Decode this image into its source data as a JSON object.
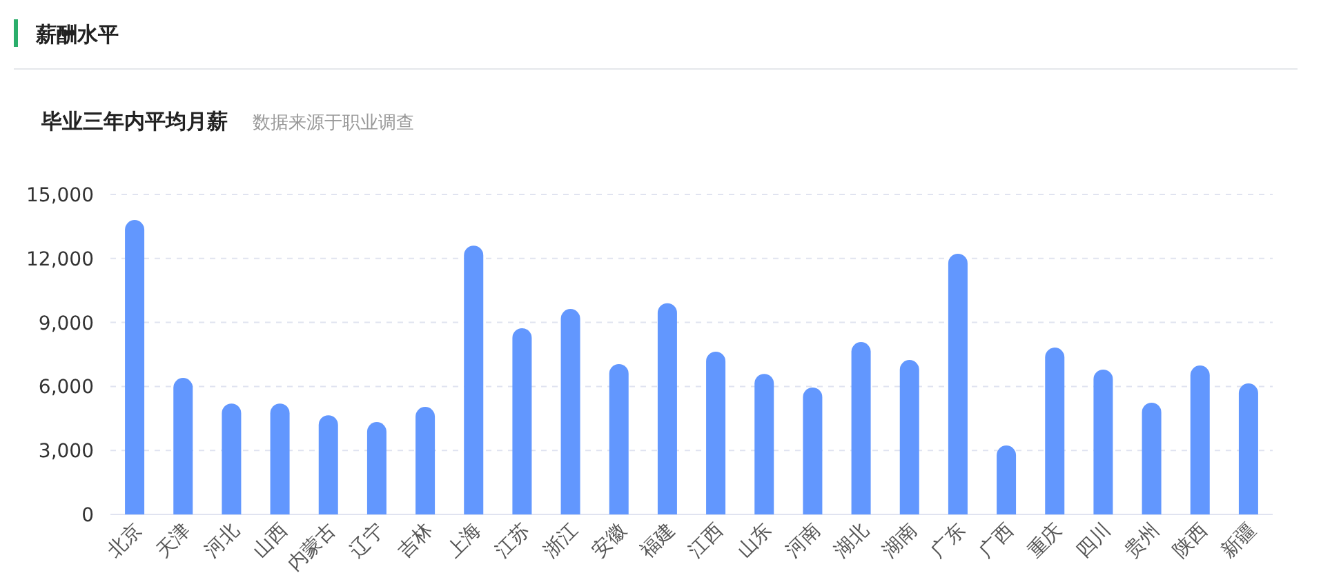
{
  "chart_data": {
    "type": "bar",
    "title": "薪酬水平",
    "subtitle": "毕业三年内平均月薪",
    "annotations": [
      "数据来源于职业调查"
    ],
    "categories": [
      "北京",
      "天津",
      "河北",
      "山西",
      "内蒙古",
      "辽宁",
      "吉林",
      "上海",
      "江苏",
      "浙江",
      "安徽",
      "福建",
      "江西",
      "山东",
      "河南",
      "湖北",
      "湖南",
      "广东",
      "广西",
      "重庆",
      "四川",
      "贵州",
      "陕西",
      "新疆"
    ],
    "values": [
      13800,
      6400,
      5200,
      5200,
      4650,
      4330,
      5040,
      12600,
      8730,
      9630,
      7050,
      9900,
      7630,
      6590,
      5950,
      8080,
      7240,
      12220,
      3230,
      7820,
      6790,
      5240,
      6980,
      6140
    ],
    "color": "#6297fe",
    "ylim": [
      0,
      15000
    ],
    "yticks": [
      {
        "value": 0,
        "label": "0"
      },
      {
        "value": 3000,
        "label": "3,000"
      },
      {
        "value": 6000,
        "label": "6,000"
      },
      {
        "value": 9000,
        "label": "9,000"
      },
      {
        "value": 12000,
        "label": "12,000"
      },
      {
        "value": 15000,
        "label": "15,000"
      }
    ],
    "grid": "y"
  }
}
